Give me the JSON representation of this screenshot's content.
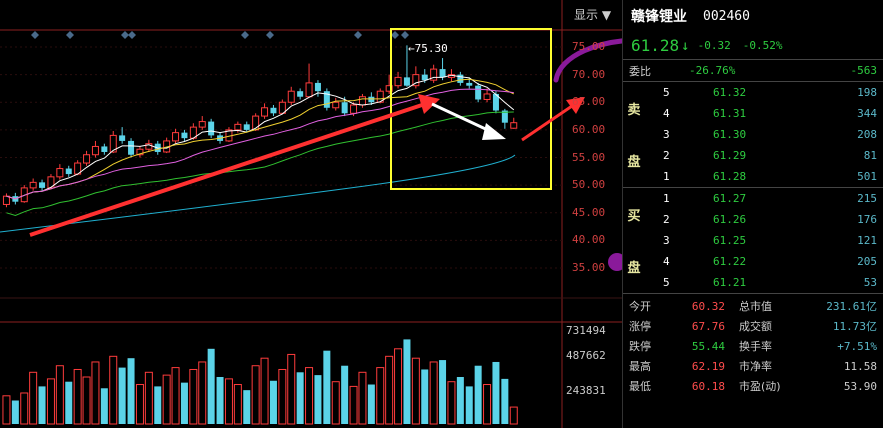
{
  "header": {
    "display_label": "显示",
    "display_caret": "▼"
  },
  "stock": {
    "name": "赣锋锂业",
    "code": "002460",
    "price": "61.28",
    "arrow": "↓",
    "change": "-0.32",
    "change_pct": "-0.52%"
  },
  "weibi": {
    "label": "委比",
    "value": "-26.76%",
    "diff": "-563"
  },
  "sell_side": {
    "label_1": "卖",
    "label_2": "盘"
  },
  "buy_side": {
    "label_1": "买",
    "label_2": "盘"
  },
  "sell_orders": [
    {
      "level": "5",
      "price": "61.32",
      "volume": "198"
    },
    {
      "level": "4",
      "price": "61.31",
      "volume": "344"
    },
    {
      "level": "3",
      "price": "61.30",
      "volume": "208"
    },
    {
      "level": "2",
      "price": "61.29",
      "volume": "81"
    },
    {
      "level": "1",
      "price": "61.28",
      "volume": "501"
    }
  ],
  "buy_orders": [
    {
      "level": "1",
      "price": "61.27",
      "volume": "215"
    },
    {
      "level": "2",
      "price": "61.26",
      "volume": "176"
    },
    {
      "level": "3",
      "price": "61.25",
      "volume": "121"
    },
    {
      "level": "4",
      "price": "61.22",
      "volume": "205"
    },
    {
      "level": "5",
      "price": "61.21",
      "volume": "53"
    }
  ],
  "stats": [
    {
      "l1": "今开",
      "v1": "60.32",
      "c1": "red",
      "l2": "总市值",
      "v2": "231.61亿",
      "c2": ""
    },
    {
      "l1": "涨停",
      "v1": "67.76",
      "c1": "red",
      "l2": "成交额",
      "v2": "11.73亿",
      "c2": ""
    },
    {
      "l1": "跌停",
      "v1": "55.44",
      "c1": "green",
      "l2": "换手率",
      "v2": "+7.51%",
      "c2": ""
    },
    {
      "l1": "最高",
      "v1": "62.19",
      "c1": "red",
      "l2": "市净率",
      "v2": "11.58",
      "c2": "white"
    },
    {
      "l1": "最低",
      "v1": "60.18",
      "c1": "red",
      "l2": "市盈(动)",
      "v2": "53.90",
      "c2": "white"
    }
  ],
  "chart_data": {
    "type": "candlestick",
    "price_axis": [
      "75.00",
      "70.00",
      "65.00",
      "60.00",
      "55.00",
      "50.00",
      "45.00",
      "40.00",
      "35.00"
    ],
    "volume_axis": [
      "731494",
      "487662",
      "243831"
    ],
    "max_annotation": "←75.30",
    "candles": [
      {
        "o": 46.5,
        "c": 48.0,
        "h": 48.5,
        "l": 46.0,
        "v": 0.3
      },
      {
        "o": 48.0,
        "c": 47.0,
        "h": 48.6,
        "l": 46.5,
        "v": 0.25
      },
      {
        "o": 47.0,
        "c": 49.5,
        "h": 50.0,
        "l": 46.8,
        "v": 0.33
      },
      {
        "o": 49.5,
        "c": 50.5,
        "h": 51.2,
        "l": 49.0,
        "v": 0.55
      },
      {
        "o": 50.5,
        "c": 49.5,
        "h": 51.0,
        "l": 49.0,
        "v": 0.4
      },
      {
        "o": 49.5,
        "c": 51.5,
        "h": 52.0,
        "l": 49.2,
        "v": 0.48
      },
      {
        "o": 51.5,
        "c": 53.0,
        "h": 53.8,
        "l": 51.0,
        "v": 0.62
      },
      {
        "o": 53.0,
        "c": 52.0,
        "h": 53.5,
        "l": 51.5,
        "v": 0.45
      },
      {
        "o": 52.0,
        "c": 54.0,
        "h": 54.5,
        "l": 51.8,
        "v": 0.58
      },
      {
        "o": 54.0,
        "c": 55.5,
        "h": 56.2,
        "l": 53.5,
        "v": 0.5
      },
      {
        "o": 55.5,
        "c": 57.0,
        "h": 58.0,
        "l": 55.0,
        "v": 0.66
      },
      {
        "o": 57.0,
        "c": 56.0,
        "h": 57.5,
        "l": 55.5,
        "v": 0.38
      },
      {
        "o": 56.0,
        "c": 59.0,
        "h": 59.8,
        "l": 55.8,
        "v": 0.72
      },
      {
        "o": 59.0,
        "c": 58.0,
        "h": 60.5,
        "l": 57.5,
        "v": 0.6
      },
      {
        "o": 58.0,
        "c": 55.5,
        "h": 58.5,
        "l": 55.0,
        "v": 0.7
      },
      {
        "o": 55.5,
        "c": 56.5,
        "h": 57.0,
        "l": 55.0,
        "v": 0.42
      },
      {
        "o": 56.5,
        "c": 57.5,
        "h": 58.2,
        "l": 56.0,
        "v": 0.55
      },
      {
        "o": 57.5,
        "c": 56.0,
        "h": 58.0,
        "l": 55.5,
        "v": 0.4
      },
      {
        "o": 56.0,
        "c": 58.0,
        "h": 58.6,
        "l": 55.8,
        "v": 0.52
      },
      {
        "o": 58.0,
        "c": 59.5,
        "h": 60.2,
        "l": 57.6,
        "v": 0.6
      },
      {
        "o": 59.5,
        "c": 58.5,
        "h": 60.0,
        "l": 58.0,
        "v": 0.44
      },
      {
        "o": 58.5,
        "c": 60.5,
        "h": 61.2,
        "l": 58.2,
        "v": 0.58
      },
      {
        "o": 60.5,
        "c": 61.5,
        "h": 62.5,
        "l": 60.0,
        "v": 0.66
      },
      {
        "o": 61.5,
        "c": 59.0,
        "h": 62.0,
        "l": 58.5,
        "v": 0.8
      },
      {
        "o": 59.0,
        "c": 58.0,
        "h": 59.5,
        "l": 57.5,
        "v": 0.5
      },
      {
        "o": 58.0,
        "c": 60.0,
        "h": 60.5,
        "l": 57.8,
        "v": 0.48
      },
      {
        "o": 60.0,
        "c": 61.0,
        "h": 61.5,
        "l": 59.5,
        "v": 0.42
      },
      {
        "o": 61.0,
        "c": 60.0,
        "h": 61.5,
        "l": 59.5,
        "v": 0.36
      },
      {
        "o": 60.0,
        "c": 62.5,
        "h": 63.0,
        "l": 59.8,
        "v": 0.62
      },
      {
        "o": 62.5,
        "c": 64.0,
        "h": 64.8,
        "l": 62.0,
        "v": 0.7
      },
      {
        "o": 64.0,
        "c": 63.0,
        "h": 64.5,
        "l": 62.5,
        "v": 0.46
      },
      {
        "o": 63.0,
        "c": 65.0,
        "h": 65.5,
        "l": 62.8,
        "v": 0.58
      },
      {
        "o": 65.0,
        "c": 67.0,
        "h": 67.8,
        "l": 64.5,
        "v": 0.74
      },
      {
        "o": 67.0,
        "c": 66.0,
        "h": 67.5,
        "l": 65.5,
        "v": 0.55
      },
      {
        "o": 66.0,
        "c": 68.5,
        "h": 72.0,
        "l": 65.8,
        "v": 0.6
      },
      {
        "o": 68.5,
        "c": 67.0,
        "h": 69.0,
        "l": 66.0,
        "v": 0.52
      },
      {
        "o": 67.0,
        "c": 64.0,
        "h": 67.5,
        "l": 63.5,
        "v": 0.78
      },
      {
        "o": 64.0,
        "c": 65.0,
        "h": 65.8,
        "l": 63.5,
        "v": 0.45
      },
      {
        "o": 65.0,
        "c": 63.0,
        "h": 66.0,
        "l": 62.5,
        "v": 0.62
      },
      {
        "o": 63.0,
        "c": 64.5,
        "h": 65.0,
        "l": 62.5,
        "v": 0.4
      },
      {
        "o": 64.5,
        "c": 66.0,
        "h": 66.5,
        "l": 64.0,
        "v": 0.55
      },
      {
        "o": 66.0,
        "c": 65.0,
        "h": 66.8,
        "l": 64.5,
        "v": 0.42
      },
      {
        "o": 65.0,
        "c": 67.0,
        "h": 67.5,
        "l": 64.8,
        "v": 0.6
      },
      {
        "o": 67.0,
        "c": 68.0,
        "h": 70.0,
        "l": 66.5,
        "v": 0.72
      },
      {
        "o": 68.0,
        "c": 69.5,
        "h": 70.5,
        "l": 67.5,
        "v": 0.8
      },
      {
        "o": 69.5,
        "c": 68.0,
        "h": 75.3,
        "l": 67.8,
        "v": 0.9
      },
      {
        "o": 68.0,
        "c": 70.0,
        "h": 71.5,
        "l": 67.5,
        "v": 0.7
      },
      {
        "o": 70.0,
        "c": 69.0,
        "h": 71.0,
        "l": 68.5,
        "v": 0.58
      },
      {
        "o": 69.0,
        "c": 71.0,
        "h": 71.8,
        "l": 68.5,
        "v": 0.66
      },
      {
        "o": 71.0,
        "c": 69.5,
        "h": 73.0,
        "l": 69.0,
        "v": 0.68
      },
      {
        "o": 69.5,
        "c": 70.0,
        "h": 71.0,
        "l": 68.8,
        "v": 0.45
      },
      {
        "o": 70.0,
        "c": 68.5,
        "h": 70.5,
        "l": 68.0,
        "v": 0.5
      },
      {
        "o": 68.5,
        "c": 68.0,
        "h": 69.5,
        "l": 67.5,
        "v": 0.4
      },
      {
        "o": 68.0,
        "c": 65.5,
        "h": 68.5,
        "l": 65.0,
        "v": 0.62
      },
      {
        "o": 65.5,
        "c": 66.5,
        "h": 67.5,
        "l": 65.0,
        "v": 0.42
      },
      {
        "o": 66.5,
        "c": 63.5,
        "h": 67.0,
        "l": 63.0,
        "v": 0.66
      },
      {
        "o": 63.5,
        "c": 61.3,
        "h": 63.8,
        "l": 60.2,
        "v": 0.48
      },
      {
        "o": 60.3,
        "c": 61.3,
        "h": 62.2,
        "l": 60.2,
        "v": 0.18
      }
    ]
  }
}
